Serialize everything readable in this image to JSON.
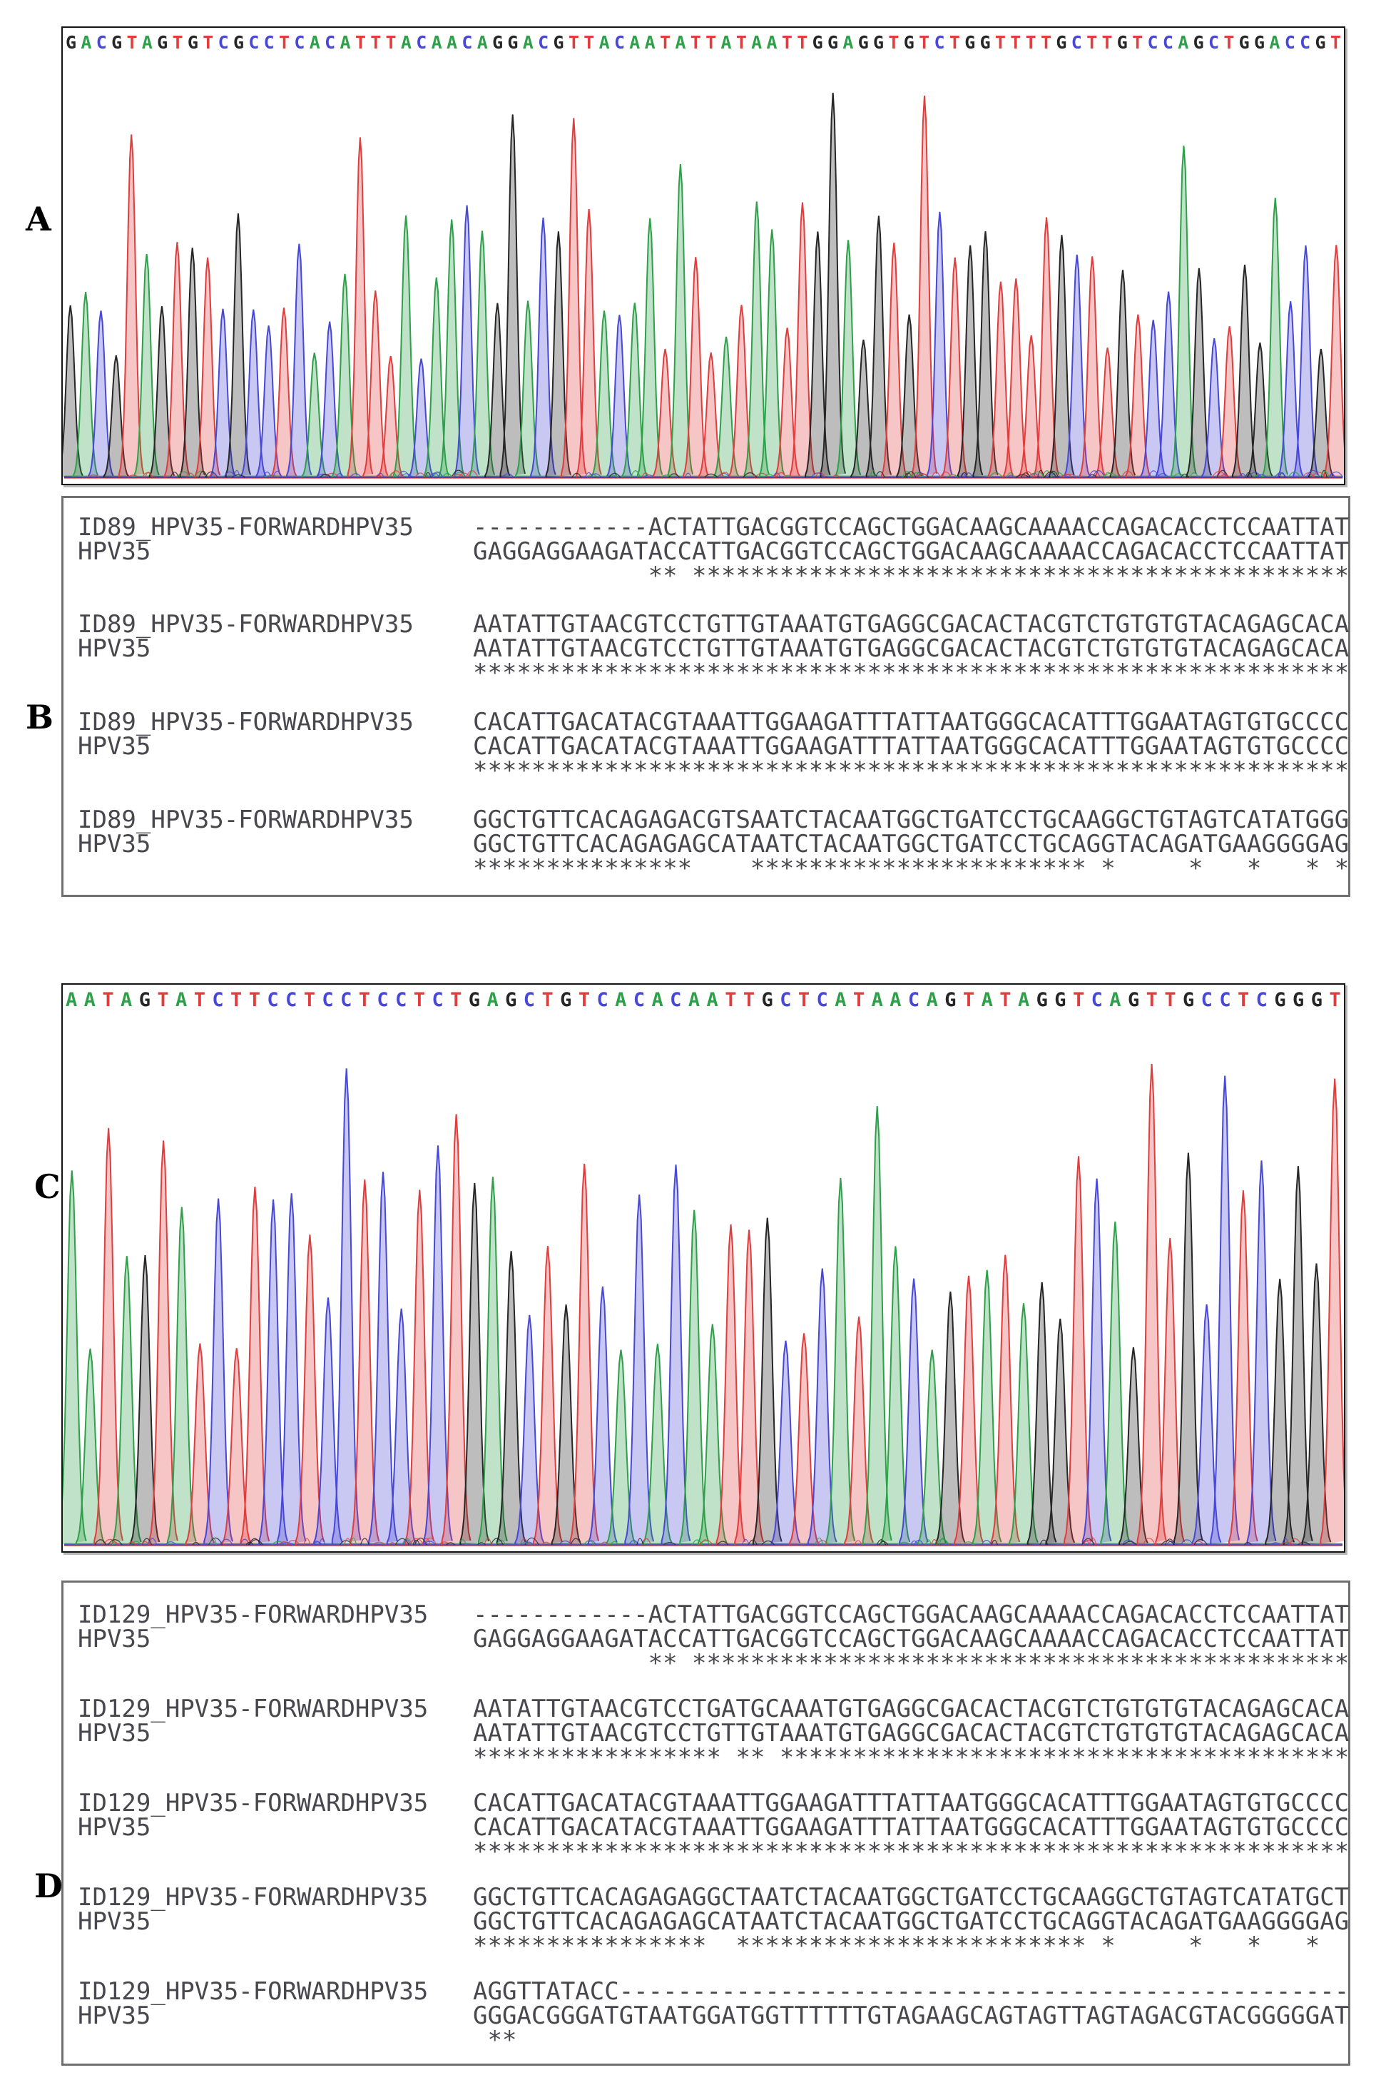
{
  "figure": {
    "panel_a_label": "A",
    "panel_b_label": "B",
    "panel_c_label": "C",
    "panel_d_label": "D"
  },
  "base_colors": {
    "A": "#2fa04a",
    "C": "#4848d8",
    "G": "#262626",
    "T": "#e03e3e"
  },
  "chromatogram_a": {
    "basecalls": "GACGTAGTGTCGCCTCACATTTACAACAGGACGTTACAATATTATAATTGGAGGTGTCTGGTTTTGCTTGTCCAGCTGGACCGT"
  },
  "chromatogram_c": {
    "basecalls": "AATAGTATCTTCCTCCTCCTCTGAGCTGTCACACAATTGCTCATAACAGTATAGGTCAGTTGCCTCGGGT"
  },
  "alignment_b": {
    "query_label": "ID89_HPV35-FORWARDHPV35",
    "reference_label": "HPV35",
    "blocks": [
      {
        "query": "------------ACTATTGACGGTCCAGCTGGACAAGCAAAACCAGACACCTCCAATTAT",
        "reference": "GAGGAGGAAGATACCATTGACGGTCCAGCTGGACAAGCAAAACCAGACACCTCCAATTAT",
        "match": "            ** *********************************************"
      },
      {
        "query": "AATATTGTAACGTCCTGTTGTAAATGTGAGGCGACACTACGTCTGTGTGTACAGAGCACA",
        "reference": "AATATTGTAACGTCCTGTTGTAAATGTGAGGCGACACTACGTCTGTGTGTACAGAGCACA",
        "match": "************************************************************"
      },
      {
        "query": "CACATTGACATACGTAAATTGGAAGATTTATTAATGGGCACATTTGGAATAGTGTGCCCC",
        "reference": "CACATTGACATACGTAAATTGGAAGATTTATTAATGGGCACATTTGGAATAGTGTGCCCC",
        "match": "************************************************************"
      },
      {
        "query": "GGCTGTTCACAGAGACGTSAATCTACAATGGCTGATCCTGCAAGGCTGTAGTCATATGGG",
        "reference": "GGCTGTTCACAGAGAGCATAATCTACAATGGCTGATCCTGCAGGTACAGATGAAGGGGAG",
        "match": "***************    *********************** *     *   *   * *"
      }
    ]
  },
  "alignment_d": {
    "query_label": "ID129_HPV35-FORWARDHPV35",
    "reference_label": "HPV35",
    "blocks": [
      {
        "query": "------------ACTATTGACGGTCCAGCTGGACAAGCAAAACCAGACACCTCCAATTAT",
        "reference": "GAGGAGGAAGATACCATTGACGGTCCAGCTGGACAAGCAAAACCAGACACCTCCAATTAT",
        "match": "            ** *********************************************"
      },
      {
        "query": "AATATTGTAACGTCCTGATGCAAATGTGAGGCGACACTACGTCTGTGTGTACAGAGCACA",
        "reference": "AATATTGTAACGTCCTGTTGTAAATGTGAGGCGACACTACGTCTGTGTGTACAGAGCACA",
        "match": "***************** ** ***************************************"
      },
      {
        "query": "CACATTGACATACGTAAATTGGAAGATTTATTAATGGGCACATTTGGAATAGTGTGCCCC",
        "reference": "CACATTGACATACGTAAATTGGAAGATTTATTAATGGGCACATTTGGAATAGTGTGCCCC",
        "match": "************************************************************"
      },
      {
        "query": "GGCTGTTCACAGAGAGGCTAATCTACAATGGCTGATCCTGCAAGGCTGTAGTCATATGCT",
        "reference": "GGCTGTTCACAGAGAGCATAATCTACAATGGCTGATCCTGCAGGTACAGATGAAGGGGAG",
        "match": "****************  ************************ *     *   *   *  "
      },
      {
        "query": "AGGTTATACC--------------------------------------------------",
        "reference": "GGGACGGGATGTAATGGATGGTTTTTTGTAGAAGCAGTAGTTAGTAGACGTACGGGGGAT",
        "match": " **                                                          "
      }
    ]
  }
}
